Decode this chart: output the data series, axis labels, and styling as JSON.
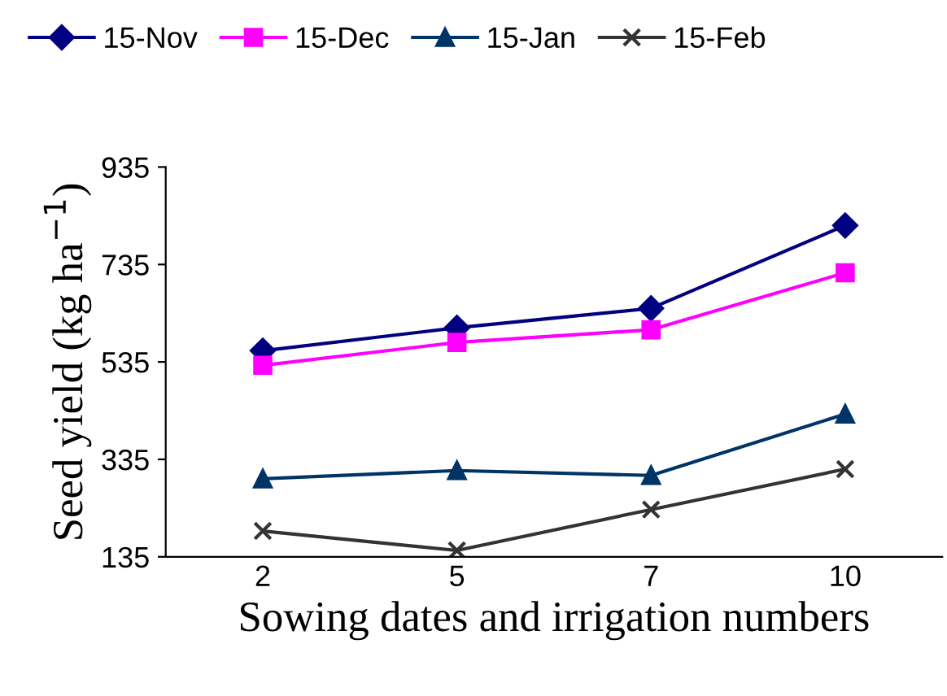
{
  "chart_data": {
    "type": "line",
    "xlabel": "Sowing dates and irrigation numbers",
    "ylabel": "Seed yield (kg ha$^{−1}$)",
    "categories": [
      "2",
      "5",
      "7",
      "10"
    ],
    "series": [
      {
        "name": "15-Nov",
        "color": "#000080",
        "marker": "diamond",
        "values": [
          558,
          605,
          645,
          815
        ]
      },
      {
        "name": "15-Dec",
        "color": "#ff00ff",
        "marker": "square",
        "values": [
          528,
          575,
          601,
          718
        ]
      },
      {
        "name": "15-Jan",
        "color": "#003366",
        "marker": "triangle",
        "values": [
          295,
          312,
          302,
          428
        ]
      },
      {
        "name": "15-Feb",
        "color": "#333333",
        "marker": "cross",
        "values": [
          188,
          148,
          232,
          315
        ]
      }
    ],
    "ylim": [
      135,
      935
    ],
    "yticks": [
      135,
      335,
      535,
      735,
      935
    ],
    "grid": false,
    "legend": "top",
    "line_style": "solid"
  }
}
